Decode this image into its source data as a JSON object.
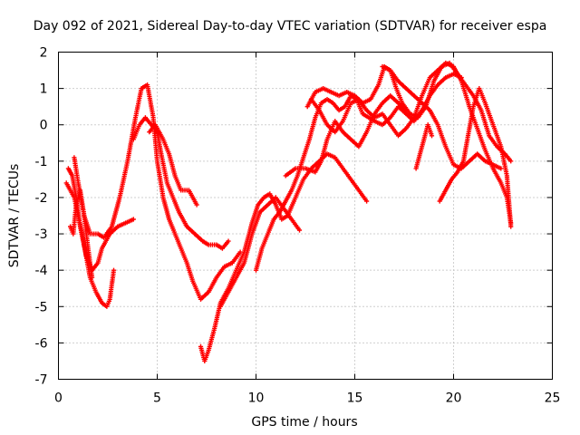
{
  "chart_data": {
    "type": "scatter",
    "title": "Day 092 of 2021, Sidereal Day-to-day VTEC variation (SDTVAR) for receiver espa",
    "xlabel": "GPS time / hours",
    "ylabel": "SDTVAR / TECUs",
    "xlim": [
      0,
      25
    ],
    "ylim": [
      -7,
      2
    ],
    "xticks": [
      "0",
      "5",
      "10",
      "15",
      "20",
      "25"
    ],
    "yticks": [
      "2",
      "1",
      "0",
      "-1",
      "-2",
      "-3",
      "-4",
      "-5",
      "-6",
      "-7"
    ],
    "grid": true,
    "marker": "+",
    "color": "#ff0000",
    "series": [
      {
        "x": [
          0.4,
          0.8,
          1.2,
          1.6,
          1.9,
          2.2,
          2.45,
          2.6,
          2.8
        ],
        "y": [
          -1.6,
          -2.0,
          -3.0,
          -4.2,
          -4.6,
          -4.9,
          -5.0,
          -4.8,
          -4.0
        ]
      },
      {
        "x": [
          0.5,
          0.7,
          0.9,
          1.1,
          1.4,
          1.7,
          2.0,
          2.2,
          2.6,
          3.0,
          3.4,
          3.8
        ],
        "y": [
          -1.2,
          -1.4,
          -2.0,
          -2.8,
          -3.6,
          -4.0,
          -3.8,
          -3.4,
          -3.0,
          -2.8,
          -2.7,
          -2.6
        ]
      },
      {
        "x": [
          0.6,
          0.75,
          0.9,
          1.1,
          1.3,
          1.5,
          1.7
        ],
        "y": [
          -2.8,
          -3.0,
          -2.2,
          -1.8,
          -2.5,
          -3.4,
          -4.2
        ]
      },
      {
        "x": [
          0.8,
          1.0,
          1.3,
          1.6,
          2.0,
          2.3,
          2.7,
          3.1,
          3.5,
          3.9,
          4.2,
          4.5,
          4.8,
          5.0,
          5.3,
          5.6,
          5.9,
          6.2,
          6.5,
          6.8,
          7.2,
          7.6,
          8.0,
          8.4,
          8.8,
          9.2
        ],
        "y": [
          -0.9,
          -1.6,
          -2.5,
          -3.0,
          -3.0,
          -3.1,
          -2.8,
          -2.0,
          -1.0,
          0.2,
          1.0,
          1.1,
          0.2,
          -1.0,
          -2.0,
          -2.6,
          -3.0,
          -3.4,
          -3.8,
          -4.3,
          -4.8,
          -4.6,
          -4.2,
          -3.9,
          -3.8,
          -3.5
        ]
      },
      {
        "x": [
          3.8,
          4.1,
          4.4,
          4.7,
          5.0,
          5.2,
          5.5,
          5.8,
          6.1,
          6.5,
          6.9,
          7.3,
          7.6,
          8.0,
          8.3,
          8.6
        ],
        "y": [
          -0.4,
          0.0,
          0.2,
          0.0,
          -0.2,
          -0.8,
          -1.6,
          -2.0,
          -2.4,
          -2.8,
          -3.0,
          -3.2,
          -3.3,
          -3.3,
          -3.4,
          -3.2
        ]
      },
      {
        "x": [
          4.6,
          4.9,
          5.3,
          5.6,
          5.9,
          6.2,
          6.6,
          7.0
        ],
        "y": [
          -0.2,
          0.0,
          -0.4,
          -0.8,
          -1.4,
          -1.8,
          -1.8,
          -2.2
        ]
      },
      {
        "x": [
          7.2,
          7.4,
          7.6,
          7.9,
          8.2,
          8.6,
          9.0,
          9.4,
          9.8,
          10.1,
          10.4,
          10.7,
          11.0,
          11.3,
          11.6,
          12.0,
          12.4,
          12.8,
          13.2,
          13.6,
          14.0,
          14.4,
          14.8,
          15.2,
          15.6
        ],
        "y": [
          -6.1,
          -6.5,
          -6.2,
          -5.6,
          -4.9,
          -4.5,
          -4.0,
          -3.5,
          -2.7,
          -2.2,
          -2.0,
          -1.9,
          -2.2,
          -2.6,
          -2.5,
          -2.0,
          -1.5,
          -1.2,
          -1.0,
          -0.8,
          -0.9,
          -1.2,
          -1.5,
          -1.8,
          -2.1
        ]
      },
      {
        "x": [
          8.2,
          8.6,
          9.0,
          9.4,
          9.8,
          10.2,
          10.6,
          11.0,
          11.4,
          11.8,
          12.2
        ],
        "y": [
          -5.0,
          -4.6,
          -4.2,
          -3.8,
          -3.0,
          -2.4,
          -2.2,
          -2.0,
          -2.3,
          -2.6,
          -2.9
        ]
      },
      {
        "x": [
          10.0,
          10.3,
          10.6,
          10.9,
          11.2,
          11.5,
          11.8,
          12.1,
          12.4,
          12.7,
          13.0,
          13.3,
          13.6,
          13.9,
          14.2,
          14.5,
          14.8,
          15.1,
          15.4,
          15.7,
          16.0,
          16.4,
          16.8,
          17.2,
          17.6,
          18.0,
          18.4,
          18.8,
          19.2,
          19.6,
          20.0,
          20.4
        ],
        "y": [
          -4.0,
          -3.4,
          -3.0,
          -2.6,
          -2.4,
          -2.1,
          -1.8,
          -1.4,
          -0.9,
          -0.4,
          0.2,
          0.6,
          0.7,
          0.6,
          0.4,
          0.5,
          0.8,
          0.7,
          0.3,
          0.2,
          0.1,
          0.0,
          0.2,
          0.5,
          0.3,
          0.1,
          0.4,
          0.8,
          1.1,
          1.3,
          1.4,
          1.3
        ]
      },
      {
        "x": [
          11.5,
          12.0,
          12.5,
          13.0,
          13.3,
          13.6,
          14.0,
          14.4,
          14.8,
          15.2,
          15.6,
          16.0,
          16.4,
          16.8,
          17.2,
          17.6
        ],
        "y": [
          -1.4,
          -1.2,
          -1.2,
          -1.3,
          -1.0,
          -0.4,
          0.1,
          -0.2,
          -0.4,
          -0.6,
          -0.2,
          0.3,
          0.6,
          0.8,
          0.6,
          0.4
        ]
      },
      {
        "x": [
          12.6,
          13.0,
          13.4,
          13.8,
          14.2,
          14.6,
          15.0,
          15.4,
          15.8,
          16.2,
          16.5,
          16.8,
          17.1,
          17.4,
          17.8,
          18.2,
          18.6,
          19.0,
          19.4,
          19.8,
          20.2,
          20.6,
          21.0,
          21.4,
          21.8,
          22.2,
          22.6,
          22.9
        ],
        "y": [
          0.5,
          0.9,
          1.0,
          0.9,
          0.8,
          0.9,
          0.8,
          0.6,
          0.7,
          1.1,
          1.6,
          1.5,
          1.0,
          0.6,
          0.3,
          0.2,
          0.5,
          1.2,
          1.6,
          1.7,
          1.4,
          1.1,
          0.8,
          0.4,
          -0.3,
          -0.6,
          -0.8,
          -1.0
        ]
      },
      {
        "x": [
          12.8,
          13.2,
          13.6,
          14.0,
          14.4,
          14.8,
          15.2,
          15.6,
          16.0,
          16.4,
          16.8,
          17.2,
          17.6,
          18.0,
          18.4,
          18.8,
          19.2,
          19.6,
          20.0,
          20.4,
          20.8,
          21.2,
          21.6,
          22.0,
          22.4,
          22.7,
          22.9
        ],
        "y": [
          0.7,
          0.4,
          0.0,
          -0.2,
          0.1,
          0.6,
          0.7,
          0.4,
          0.2,
          0.3,
          0.0,
          -0.3,
          -0.1,
          0.2,
          0.8,
          1.3,
          1.5,
          1.7,
          1.6,
          1.2,
          0.5,
          -0.1,
          -0.7,
          -1.2,
          -1.6,
          -2.0,
          -2.7
        ]
      },
      {
        "x": [
          16.4,
          16.8,
          17.2,
          17.6,
          18.0,
          18.4,
          18.8,
          19.2,
          19.6,
          20.0,
          20.4,
          20.8,
          21.2,
          21.6,
          22.0,
          22.4
        ],
        "y": [
          1.6,
          1.5,
          1.2,
          1.0,
          0.8,
          0.6,
          0.4,
          0.0,
          -0.6,
          -1.1,
          -1.2,
          -1.0,
          -0.8,
          -1.0,
          -1.1,
          -1.2
        ]
      },
      {
        "x": [
          18.1,
          18.3,
          18.5,
          18.7,
          18.9
        ],
        "y": [
          -1.2,
          -0.8,
          -0.4,
          0.0,
          -0.3
        ]
      },
      {
        "x": [
          19.3,
          19.6,
          19.9,
          20.2,
          20.5,
          20.7,
          21.0,
          21.3,
          21.6,
          22.0,
          22.4,
          22.7,
          22.9
        ],
        "y": [
          -2.1,
          -1.8,
          -1.5,
          -1.3,
          -1.0,
          -0.4,
          0.5,
          1.0,
          0.6,
          0.0,
          -0.6,
          -1.4,
          -2.8
        ]
      }
    ]
  }
}
